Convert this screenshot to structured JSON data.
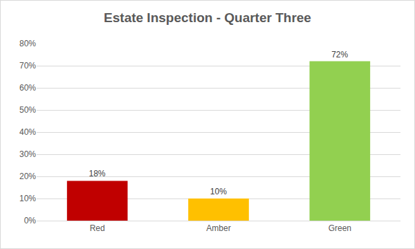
{
  "chart_data": {
    "type": "bar",
    "title": "Estate Inspection - Quarter Three",
    "categories": [
      "Red",
      "Amber",
      "Green"
    ],
    "values": [
      18,
      10,
      72
    ],
    "value_labels": [
      "18%",
      "10%",
      "72%"
    ],
    "colors": [
      "#c00000",
      "#ffc000",
      "#92d050"
    ],
    "ylim": [
      0,
      80
    ],
    "yticks": [
      {
        "value": 0,
        "label": "0%"
      },
      {
        "value": 10,
        "label": "10%"
      },
      {
        "value": 20,
        "label": "20%"
      },
      {
        "value": 30,
        "label": "30%"
      },
      {
        "value": 40,
        "label": "40%"
      },
      {
        "value": 50,
        "label": "50%"
      },
      {
        "value": 60,
        "label": "60%"
      },
      {
        "value": 70,
        "label": "70%"
      },
      {
        "value": 80,
        "label": "80%"
      }
    ],
    "grid": true,
    "data_labels": true
  }
}
